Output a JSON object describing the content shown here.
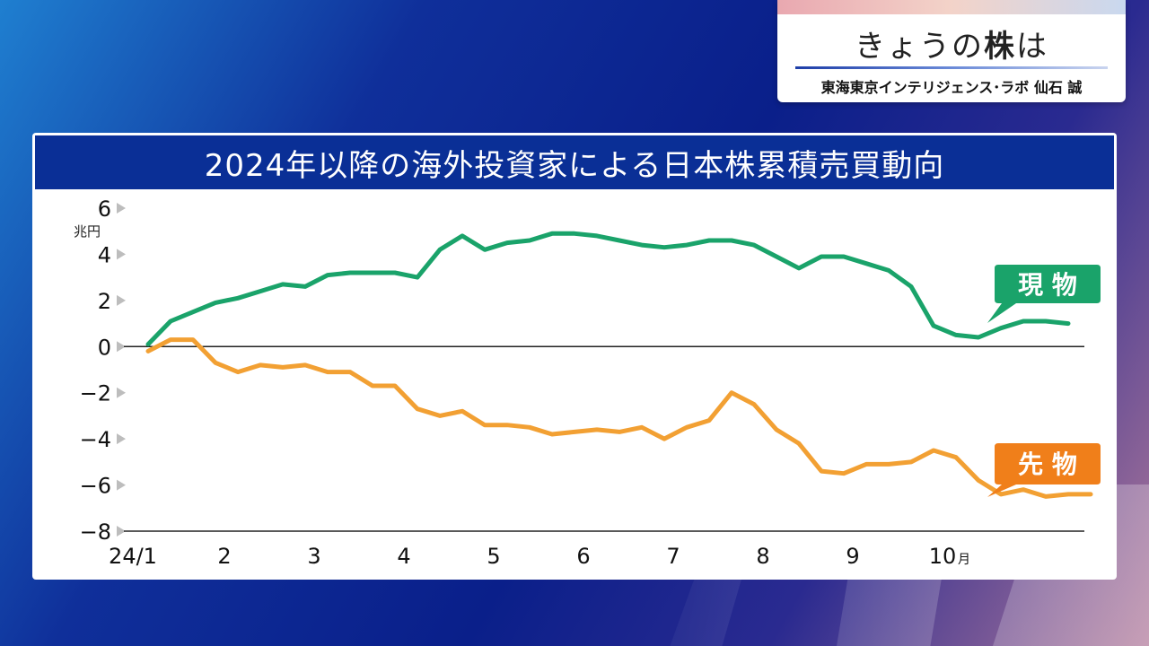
{
  "corner": {
    "title_prefix": "きょうの",
    "title_bold": "株",
    "title_suffix": "は",
    "subtitle": "東海東京インテリジェンス･ラボ 仙石 誠"
  },
  "chart_data": {
    "type": "line",
    "title": "2024年以降の海外投資家による日本株累積売買動向",
    "ylabel": "兆円",
    "ylim": [
      -8,
      6
    ],
    "yticks": [
      "6",
      "4",
      "2",
      "0",
      "−2",
      "−4",
      "−6",
      "−8"
    ],
    "yticks_values": [
      6,
      4,
      2,
      0,
      -2,
      -4,
      -6,
      -8
    ],
    "x_months": [
      "24/1",
      "2",
      "3",
      "4",
      "5",
      "6",
      "7",
      "8",
      "9",
      "10"
    ],
    "x_unit": "月",
    "xlim": [
      0,
      10.5
    ],
    "grid": false,
    "series": [
      {
        "name": "現 物",
        "color": "#1aa36a",
        "x": [
          0.0,
          0.25,
          0.5,
          0.75,
          1.0,
          1.25,
          1.5,
          1.75,
          2.0,
          2.25,
          2.5,
          2.75,
          3.0,
          3.25,
          3.5,
          3.75,
          4.0,
          4.25,
          4.5,
          4.75,
          5.0,
          5.25,
          5.5,
          5.75,
          6.0,
          6.25,
          6.5,
          6.75,
          7.0,
          7.25,
          7.5,
          7.75,
          8.0,
          8.25,
          8.5,
          8.75,
          9.0,
          9.25,
          9.5,
          9.75,
          10.0,
          10.25
        ],
        "values": [
          0.1,
          1.1,
          1.5,
          1.9,
          2.1,
          2.4,
          2.7,
          2.6,
          3.1,
          3.2,
          3.2,
          3.2,
          3.0,
          4.2,
          4.8,
          4.2,
          4.5,
          4.6,
          4.9,
          4.9,
          4.8,
          4.6,
          4.4,
          4.3,
          4.4,
          4.6,
          4.6,
          4.4,
          3.9,
          3.4,
          3.9,
          3.9,
          3.6,
          3.3,
          2.6,
          0.9,
          0.5,
          0.4,
          0.8,
          1.1,
          1.1,
          1.0
        ]
      },
      {
        "name": "先 物",
        "color": "#f2a033",
        "x": [
          0.0,
          0.25,
          0.5,
          0.75,
          1.0,
          1.25,
          1.5,
          1.75,
          2.0,
          2.25,
          2.5,
          2.75,
          3.0,
          3.25,
          3.5,
          3.75,
          4.0,
          4.25,
          4.5,
          4.75,
          5.0,
          5.25,
          5.5,
          5.75,
          6.0,
          6.25,
          6.5,
          6.75,
          7.0,
          7.25,
          7.5,
          7.75,
          8.0,
          8.25,
          8.5,
          8.75,
          9.0,
          9.25,
          9.5,
          9.75,
          10.0,
          10.25,
          10.5
        ],
        "values": [
          -0.2,
          0.3,
          0.3,
          -0.7,
          -1.1,
          -0.8,
          -0.9,
          -0.8,
          -1.1,
          -1.1,
          -1.7,
          -1.7,
          -2.7,
          -3.0,
          -2.8,
          -3.4,
          -3.4,
          -3.5,
          -3.8,
          -3.7,
          -3.6,
          -3.7,
          -3.5,
          -4.0,
          -3.5,
          -3.2,
          -2.0,
          -2.5,
          -3.6,
          -4.2,
          -5.4,
          -5.5,
          -5.1,
          -5.1,
          -5.0,
          -4.5,
          -4.8,
          -5.8,
          -6.4,
          -6.2,
          -6.5,
          -6.4,
          -6.4
        ]
      }
    ],
    "labels": {
      "genbutsu": "現 物",
      "sakimono": "先 物"
    }
  }
}
